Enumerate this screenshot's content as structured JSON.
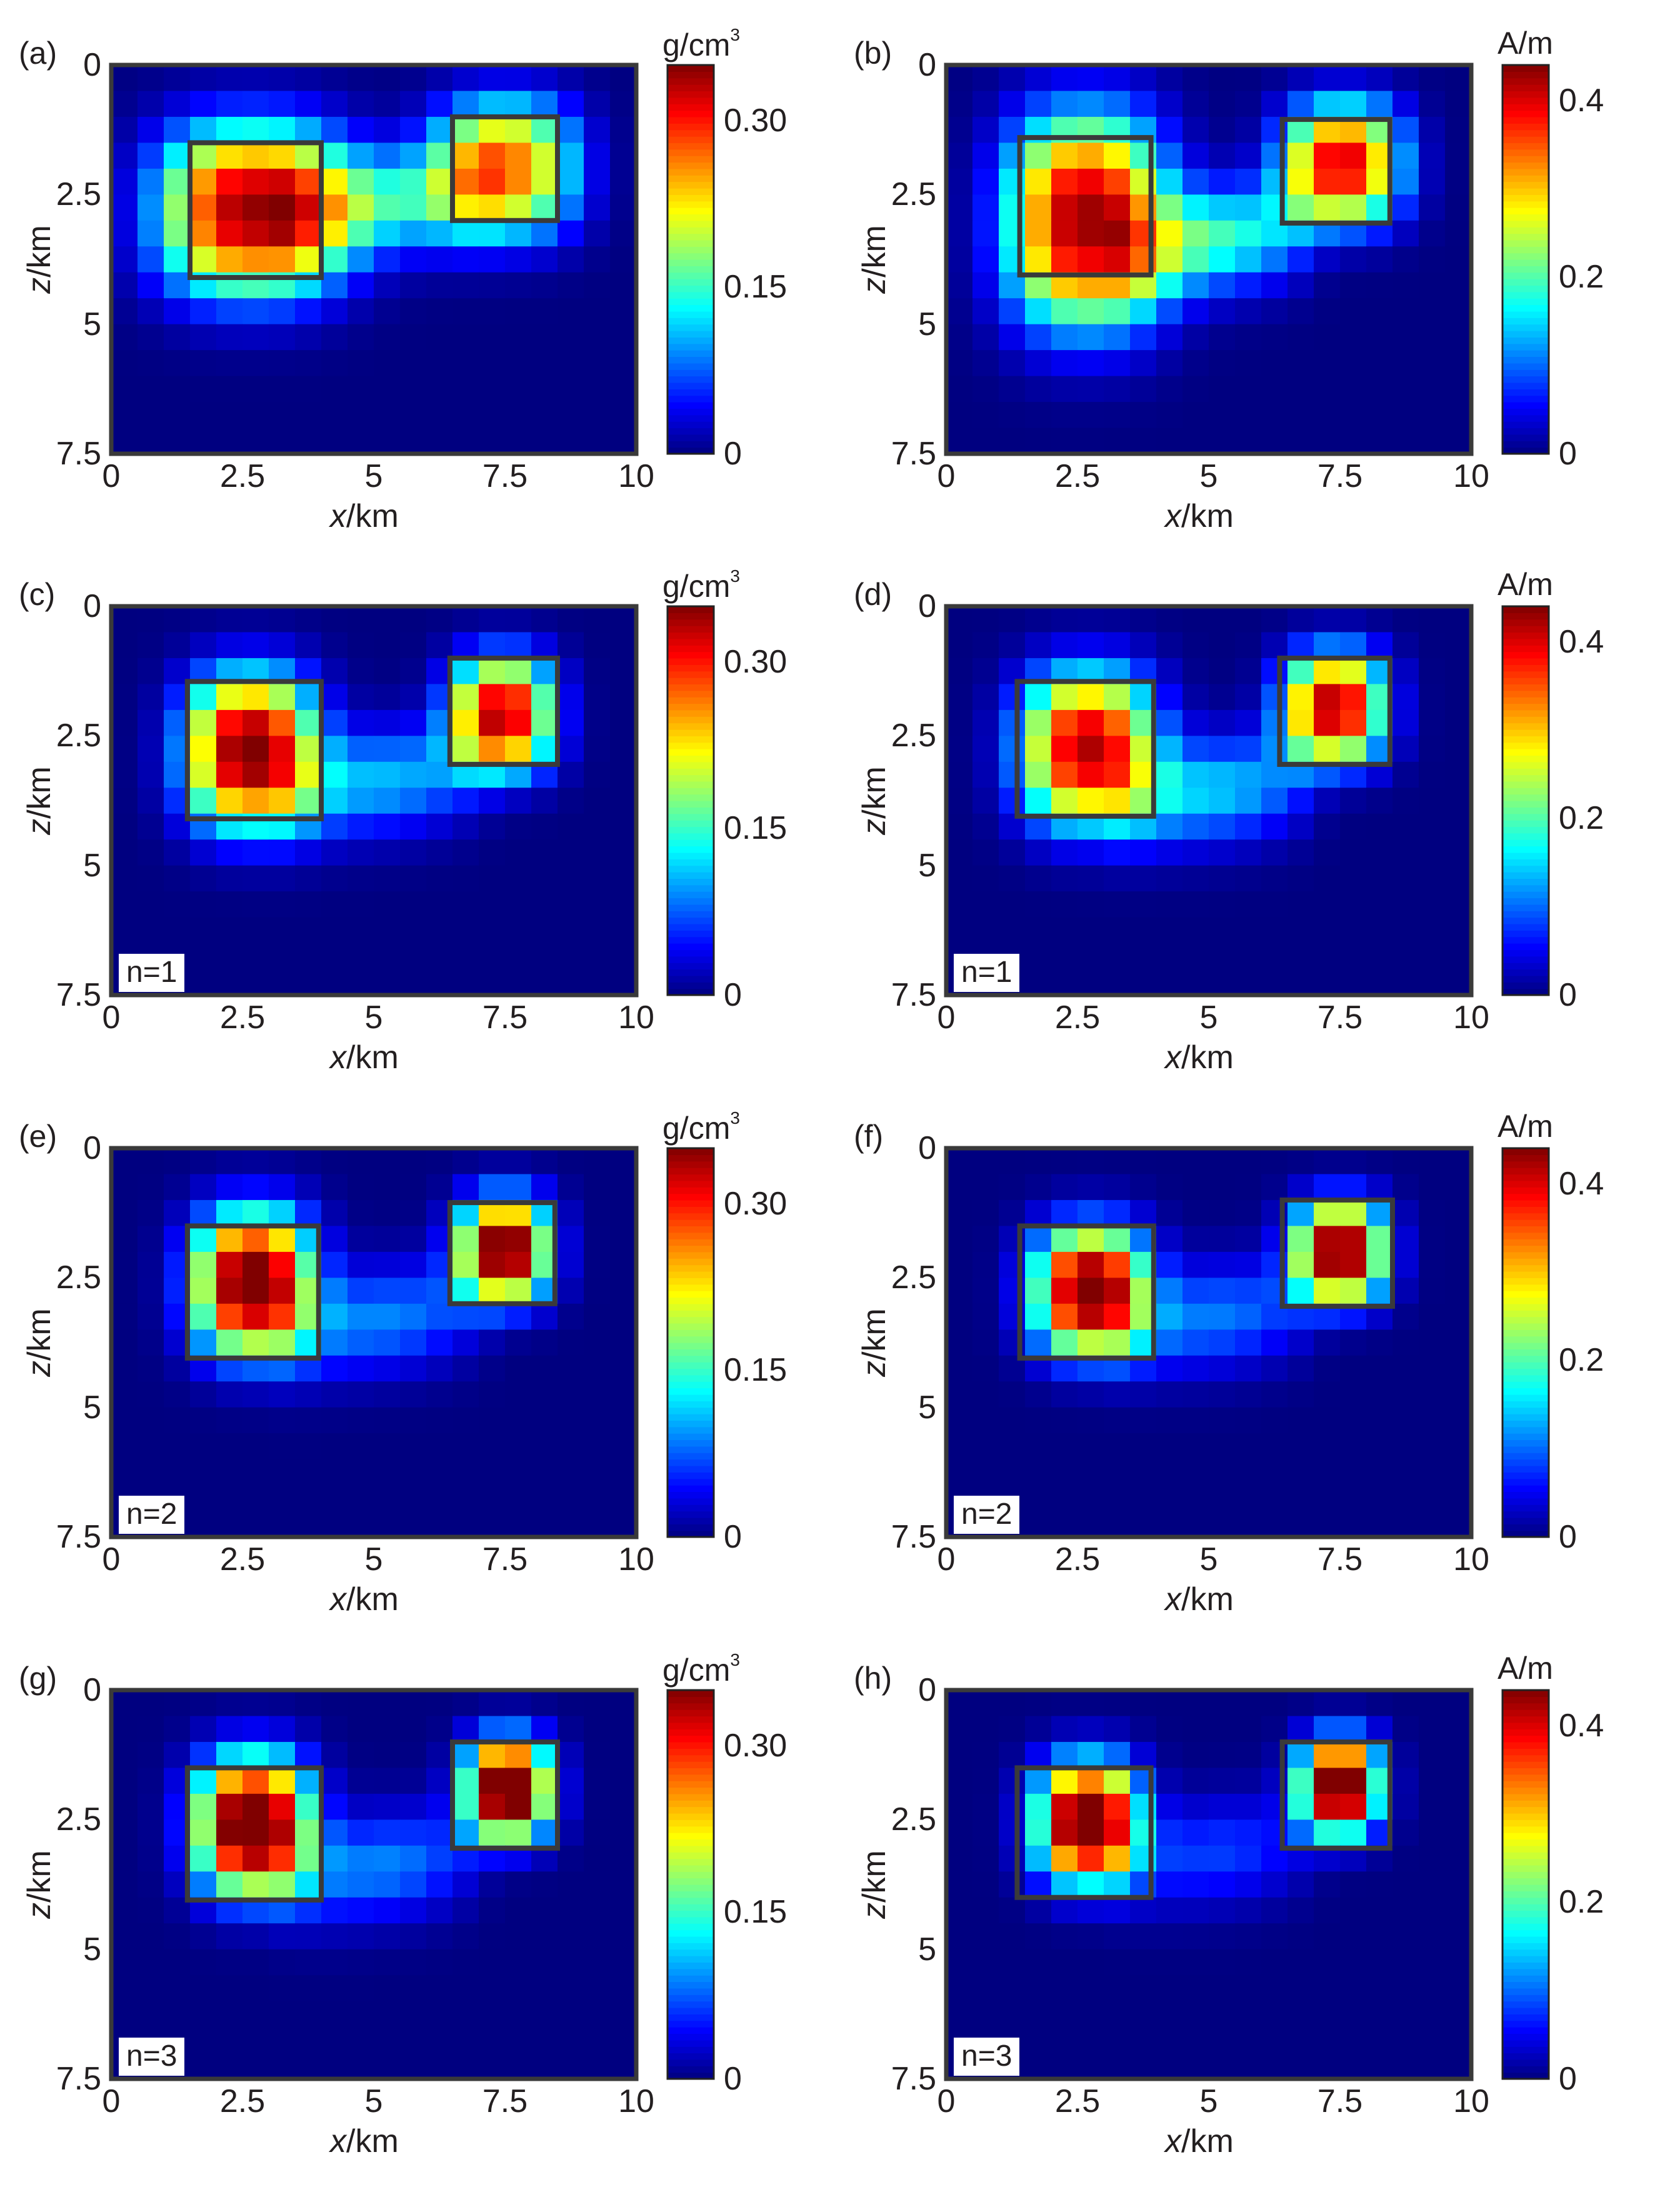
{
  "chart_data": [
    {
      "type": "heatmap",
      "label": "(a)",
      "quantity": "density",
      "unit_base": "g/cm",
      "unit_sup": "3",
      "xlabel_var": "x",
      "xlabel_unit": "/km",
      "ylabel_var": "z",
      "ylabel_unit": "/km",
      "xlim": [
        0,
        10
      ],
      "ylim": [
        0,
        7.5
      ],
      "x_ticks": [
        "0",
        "2.5",
        "5",
        "7.5",
        "10"
      ],
      "y_ticks": [
        "0",
        "2.5",
        "5",
        "7.5"
      ],
      "colorbar_range": [
        0,
        0.35
      ],
      "colorbar_ticks": [
        "0",
        "0.15",
        "0.30"
      ],
      "blobs": [
        {
          "x": 2.65,
          "z": 2.8,
          "amp": 0.34,
          "sx": 1.7,
          "sz": 1.6
        },
        {
          "x": 7.5,
          "z": 2.0,
          "amp": 0.27,
          "sx": 1.3,
          "sz": 1.3
        }
      ],
      "bridge": {
        "x0": 2.7,
        "x1": 7.6,
        "z0": 2.9,
        "z1": 2.4,
        "amp": 0.15
      },
      "boxes": [
        {
          "x0": 1.5,
          "x1": 4.0,
          "z0": 1.5,
          "z1": 4.1
        },
        {
          "x0": 6.5,
          "x1": 8.5,
          "z0": 1.0,
          "z1": 3.0
        }
      ],
      "n_label": ""
    },
    {
      "type": "heatmap",
      "label": "(b)",
      "quantity": "magnetization",
      "unit_base": "A/m",
      "unit_sup": "",
      "xlabel_var": "x",
      "xlabel_unit": "/km",
      "ylabel_var": "z",
      "ylabel_unit": "/km",
      "xlim": [
        0,
        10
      ],
      "ylim": [
        0,
        7.5
      ],
      "x_ticks": [
        "0",
        "2.5",
        "5",
        "7.5",
        "10"
      ],
      "y_ticks": [
        "0",
        "2.5",
        "5",
        "7.5"
      ],
      "colorbar_range": [
        0,
        0.44
      ],
      "colorbar_ticks": [
        "0",
        "0.2",
        "0.4"
      ],
      "blobs": [
        {
          "x": 2.65,
          "z": 3.0,
          "amp": 0.43,
          "sx": 1.45,
          "sz": 2.0
        },
        {
          "x": 7.55,
          "z": 1.9,
          "amp": 0.4,
          "sx": 1.1,
          "sz": 1.15
        }
      ],
      "bridge": {
        "x0": 2.8,
        "x1": 7.4,
        "z0": 3.6,
        "z1": 3.1,
        "amp": 0.21
      },
      "boxes": [
        {
          "x0": 1.4,
          "x1": 3.9,
          "z0": 1.4,
          "z1": 4.05
        },
        {
          "x0": 6.4,
          "x1": 8.45,
          "z0": 1.05,
          "z1": 3.05
        }
      ],
      "n_label": ""
    },
    {
      "type": "heatmap",
      "label": "(c)",
      "quantity": "density",
      "unit_base": "g/cm",
      "unit_sup": "3",
      "xlabel_var": "x",
      "xlabel_unit": "/km",
      "ylabel_var": "z",
      "ylabel_unit": "/km",
      "xlim": [
        0,
        10
      ],
      "ylim": [
        0,
        7.5
      ],
      "x_ticks": [
        "0",
        "2.5",
        "5",
        "7.5",
        "10"
      ],
      "y_ticks": [
        "0",
        "2.5",
        "5",
        "7.5"
      ],
      "colorbar_range": [
        0,
        0.35
      ],
      "colorbar_ticks": [
        "0",
        "0.15",
        "0.30"
      ],
      "blobs": [
        {
          "x": 2.65,
          "z": 2.8,
          "amp": 0.36,
          "sx": 1.2,
          "sz": 1.45
        },
        {
          "x": 7.45,
          "z": 2.1,
          "amp": 0.33,
          "sx": 0.95,
          "sz": 1.1
        }
      ],
      "bridge": {
        "x0": 2.8,
        "x1": 7.5,
        "z0": 3.6,
        "z1": 3.1,
        "amp": 0.12
      },
      "boxes": [
        {
          "x0": 1.45,
          "x1": 4.0,
          "z0": 1.45,
          "z1": 4.1
        },
        {
          "x0": 6.45,
          "x1": 8.5,
          "z0": 1.0,
          "z1": 3.05
        }
      ],
      "n_label": "n=1"
    },
    {
      "type": "heatmap",
      "label": "(d)",
      "quantity": "magnetization",
      "unit_base": "A/m",
      "unit_sup": "",
      "xlabel_var": "x",
      "xlabel_unit": "/km",
      "ylabel_var": "z",
      "ylabel_unit": "/km",
      "xlim": [
        0,
        10
      ],
      "ylim": [
        0,
        7.5
      ],
      "x_ticks": [
        "0",
        "2.5",
        "5",
        "7.5",
        "10"
      ],
      "y_ticks": [
        "0",
        "2.5",
        "5",
        "7.5"
      ],
      "colorbar_range": [
        0,
        0.44
      ],
      "colorbar_ticks": [
        "0",
        "0.2",
        "0.4"
      ],
      "blobs": [
        {
          "x": 2.7,
          "z": 2.75,
          "amp": 0.42,
          "sx": 1.25,
          "sz": 1.45
        },
        {
          "x": 7.4,
          "z": 1.95,
          "amp": 0.42,
          "sx": 0.95,
          "sz": 1.05
        }
      ],
      "bridge": {
        "x0": 2.8,
        "x1": 7.4,
        "z0": 3.8,
        "z1": 3.3,
        "amp": 0.16
      },
      "boxes": [
        {
          "x0": 1.35,
          "x1": 3.95,
          "z0": 1.45,
          "z1": 4.05
        },
        {
          "x0": 6.35,
          "x1": 8.45,
          "z0": 1.0,
          "z1": 3.05
        }
      ],
      "n_label": "n=1"
    },
    {
      "type": "heatmap",
      "label": "(e)",
      "quantity": "density",
      "unit_base": "g/cm",
      "unit_sup": "3",
      "xlabel_var": "x",
      "xlabel_unit": "/km",
      "ylabel_var": "z",
      "ylabel_unit": "/km",
      "xlim": [
        0,
        10
      ],
      "ylim": [
        0,
        7.5
      ],
      "x_ticks": [
        "0",
        "2.5",
        "5",
        "7.5",
        "10"
      ],
      "y_ticks": [
        "0",
        "2.5",
        "5",
        "7.5"
      ],
      "colorbar_range": [
        0,
        0.35
      ],
      "colorbar_ticks": [
        "0",
        "0.15",
        "0.30"
      ],
      "blobs": [
        {
          "x": 2.7,
          "z": 2.6,
          "amp": 0.38,
          "sx": 1.1,
          "sz": 1.35
        },
        {
          "x": 7.5,
          "z": 1.95,
          "amp": 0.37,
          "sx": 0.85,
          "sz": 1.0
        }
      ],
      "bridge": {
        "x0": 2.8,
        "x1": 7.5,
        "z0": 3.6,
        "z1": 3.0,
        "amp": 0.1
      },
      "boxes": [
        {
          "x0": 1.45,
          "x1": 3.95,
          "z0": 1.5,
          "z1": 4.05
        },
        {
          "x0": 6.45,
          "x1": 8.45,
          "z0": 1.05,
          "z1": 3.0
        }
      ],
      "n_label": "n=2"
    },
    {
      "type": "heatmap",
      "label": "(f)",
      "quantity": "magnetization",
      "unit_base": "A/m",
      "unit_sup": "",
      "xlabel_var": "x",
      "xlabel_unit": "/km",
      "ylabel_var": "z",
      "ylabel_unit": "/km",
      "xlim": [
        0,
        10
      ],
      "ylim": [
        0,
        7.5
      ],
      "x_ticks": [
        "0",
        "2.5",
        "5",
        "7.5",
        "10"
      ],
      "y_ticks": [
        "0",
        "2.5",
        "5",
        "7.5"
      ],
      "colorbar_range": [
        0,
        0.44
      ],
      "colorbar_ticks": [
        "0",
        "0.2",
        "0.4"
      ],
      "blobs": [
        {
          "x": 2.75,
          "z": 2.75,
          "amp": 0.47,
          "sx": 1.05,
          "sz": 1.2
        },
        {
          "x": 7.5,
          "z": 2.0,
          "amp": 0.46,
          "sx": 0.85,
          "sz": 0.95
        }
      ],
      "bridge": {
        "x0": 2.8,
        "x1": 7.4,
        "z0": 3.5,
        "z1": 3.0,
        "amp": 0.12
      },
      "boxes": [
        {
          "x0": 1.4,
          "x1": 3.95,
          "z0": 1.5,
          "z1": 4.05
        },
        {
          "x0": 6.4,
          "x1": 8.5,
          "z0": 1.0,
          "z1": 3.05
        }
      ],
      "n_label": "n=2"
    },
    {
      "type": "heatmap",
      "label": "(g)",
      "quantity": "density",
      "unit_base": "g/cm",
      "unit_sup": "3",
      "xlabel_var": "x",
      "xlabel_unit": "/km",
      "ylabel_var": "z",
      "ylabel_unit": "/km",
      "xlim": [
        0,
        10
      ],
      "ylim": [
        0,
        7.5
      ],
      "x_ticks": [
        "0",
        "2.5",
        "5",
        "7.5",
        "10"
      ],
      "y_ticks": [
        "0",
        "2.5",
        "5",
        "7.5"
      ],
      "colorbar_range": [
        0,
        0.35
      ],
      "colorbar_ticks": [
        "0",
        "0.15",
        "0.30"
      ],
      "blobs": [
        {
          "x": 2.7,
          "z": 2.6,
          "amp": 0.4,
          "sx": 1.05,
          "sz": 1.3
        },
        {
          "x": 7.55,
          "z": 1.9,
          "amp": 0.4,
          "sx": 0.8,
          "sz": 0.95
        }
      ],
      "bridge": {
        "x0": 2.8,
        "x1": 7.4,
        "z0": 3.7,
        "z1": 3.1,
        "amp": 0.1
      },
      "boxes": [
        {
          "x0": 1.45,
          "x1": 4.0,
          "z0": 1.5,
          "z1": 4.05
        },
        {
          "x0": 6.5,
          "x1": 8.5,
          "z0": 1.0,
          "z1": 3.05
        }
      ],
      "n_label": "n=3"
    },
    {
      "type": "heatmap",
      "label": "(h)",
      "quantity": "magnetization",
      "unit_base": "A/m",
      "unit_sup": "",
      "xlabel_var": "x",
      "xlabel_unit": "/km",
      "ylabel_var": "z",
      "ylabel_unit": "/km",
      "xlim": [
        0,
        10
      ],
      "ylim": [
        0,
        7.5
      ],
      "x_ticks": [
        "0",
        "2.5",
        "5",
        "7.5",
        "10"
      ],
      "y_ticks": [
        "0",
        "2.5",
        "5",
        "7.5"
      ],
      "colorbar_range": [
        0,
        0.44
      ],
      "colorbar_ticks": [
        "0",
        "0.2",
        "0.4"
      ],
      "blobs": [
        {
          "x": 2.7,
          "z": 2.55,
          "amp": 0.5,
          "sx": 0.95,
          "sz": 1.15
        },
        {
          "x": 7.5,
          "z": 1.85,
          "amp": 0.5,
          "sx": 0.75,
          "sz": 0.9
        }
      ],
      "bridge": {
        "x0": 2.8,
        "x1": 7.4,
        "z0": 3.4,
        "z1": 2.9,
        "amp": 0.09
      },
      "boxes": [
        {
          "x0": 1.35,
          "x1": 3.9,
          "z0": 1.5,
          "z1": 4.0
        },
        {
          "x0": 6.4,
          "x1": 8.45,
          "z0": 1.0,
          "z1": 3.05
        }
      ],
      "n_label": "n=3"
    }
  ]
}
